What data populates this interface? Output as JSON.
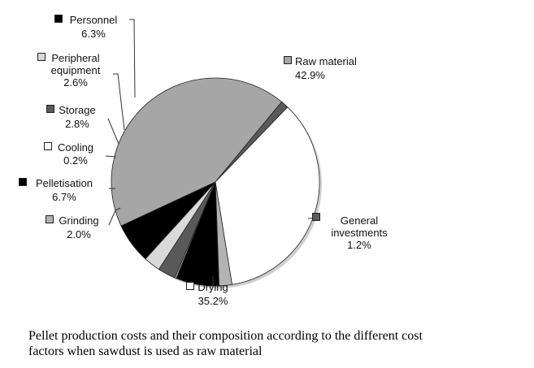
{
  "chart_data": {
    "type": "pie",
    "title": "",
    "slices": [
      {
        "label": [
          "Raw material"
        ],
        "percent_text": "42.9%",
        "value": 42.9,
        "fill": "#a6a6a6"
      },
      {
        "label": [
          "General",
          "investments"
        ],
        "percent_text": "1.2%",
        "value": 1.2,
        "fill": "#5a5a5a"
      },
      {
        "label": [
          "Drying"
        ],
        "percent_text": "35.2%",
        "value": 35.2,
        "fill": "#ffffff"
      },
      {
        "label": [
          "Grinding"
        ],
        "percent_text": "2.0%",
        "value": 2.0,
        "fill": "#b3b3b3"
      },
      {
        "label": [
          "Pelletisation"
        ],
        "percent_text": "6.7%",
        "value": 6.7,
        "fill": "#000000"
      },
      {
        "label": [
          "Cooling"
        ],
        "percent_text": "0.2%",
        "value": 0.2,
        "fill": "#ffffff"
      },
      {
        "label": [
          "Storage"
        ],
        "percent_text": "2.8%",
        "value": 2.8,
        "fill": "#595959"
      },
      {
        "label": [
          "Peripheral",
          "equipment"
        ],
        "percent_text": "2.6%",
        "value": 2.6,
        "fill": "#d9d9d9"
      },
      {
        "label": [
          "Personnel"
        ],
        "percent_text": "6.3%",
        "value": 6.3,
        "fill": "#000000"
      }
    ]
  },
  "caption": {
    "line1": "Pellet production costs and their composition according to the different cost",
    "line2": "factors when sawdust is used as raw material"
  }
}
